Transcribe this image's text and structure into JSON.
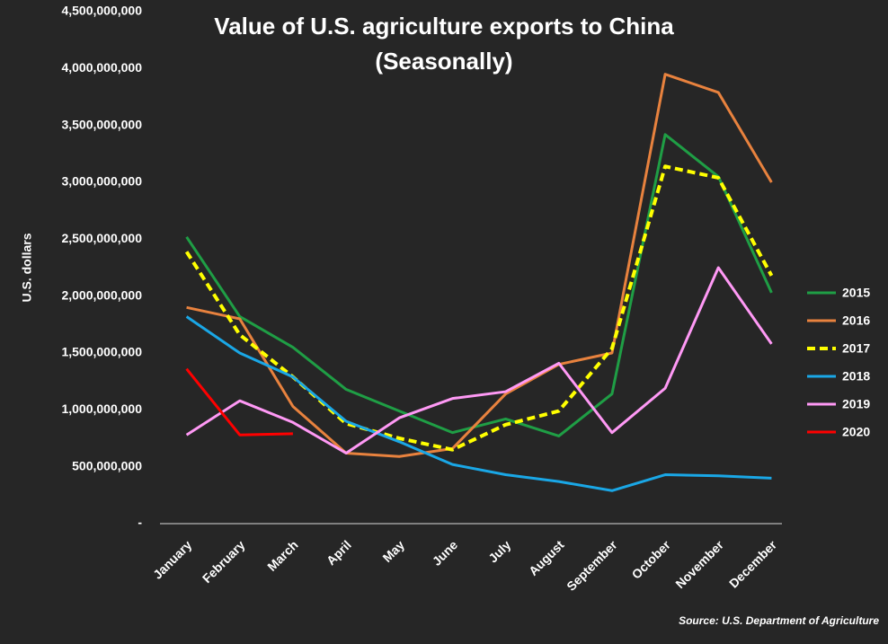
{
  "chart_data": {
    "type": "line",
    "title": "Value of U.S. agriculture exports to China",
    "subtitle": "(Seasonally)",
    "y_label": "U.S. dollars",
    "source": "Source: U.S. Department of Agriculture",
    "categories": [
      "January",
      "February",
      "March",
      "April",
      "May",
      "June",
      "July",
      "August",
      "September",
      "October",
      "November",
      "December"
    ],
    "ylim": [
      0,
      4500000000
    ],
    "yticks": [
      {
        "value": 0,
        "label": "-"
      },
      {
        "value": 500000000,
        "label": "500,000,000"
      },
      {
        "value": 1000000000,
        "label": "1,000,000,000"
      },
      {
        "value": 1500000000,
        "label": "1,500,000,000"
      },
      {
        "value": 2000000000,
        "label": "2,000,000,000"
      },
      {
        "value": 2500000000,
        "label": "2,500,000,000"
      },
      {
        "value": 3000000000,
        "label": "3,000,000,000"
      },
      {
        "value": 3500000000,
        "label": "3,500,000,000"
      },
      {
        "value": 4000000000,
        "label": "4,000,000,000"
      },
      {
        "value": 4500000000,
        "label": "4,500,000,000"
      }
    ],
    "grid": false,
    "legend": "right",
    "series": [
      {
        "name": "2015",
        "color": "#1f9e45",
        "dashed": false,
        "values": [
          2520000000,
          1820000000,
          1550000000,
          1180000000,
          990000000,
          800000000,
          920000000,
          770000000,
          1140000000,
          3420000000,
          3050000000,
          2030000000
        ]
      },
      {
        "name": "2016",
        "color": "#e8823e",
        "dashed": false,
        "values": [
          1900000000,
          1800000000,
          1030000000,
          620000000,
          590000000,
          660000000,
          1140000000,
          1400000000,
          1500000000,
          3950000000,
          3790000000,
          3000000000
        ]
      },
      {
        "name": "2017",
        "color": "#ffff00",
        "dashed": true,
        "values": [
          2390000000,
          1660000000,
          1290000000,
          880000000,
          750000000,
          650000000,
          870000000,
          990000000,
          1540000000,
          3140000000,
          3040000000,
          2180000000
        ]
      },
      {
        "name": "2018",
        "color": "#1aa7e6",
        "dashed": false,
        "values": [
          1820000000,
          1500000000,
          1290000000,
          900000000,
          720000000,
          520000000,
          430000000,
          370000000,
          290000000,
          430000000,
          420000000,
          400000000
        ]
      },
      {
        "name": "2019",
        "color": "#ff99f5",
        "dashed": false,
        "values": [
          780000000,
          1080000000,
          890000000,
          620000000,
          930000000,
          1100000000,
          1160000000,
          1410000000,
          800000000,
          1190000000,
          2250000000,
          1580000000
        ]
      },
      {
        "name": "2020",
        "color": "#ff0000",
        "dashed": false,
        "values": [
          1360000000,
          780000000,
          790000000,
          null,
          null,
          null,
          null,
          null,
          null,
          null,
          null,
          null
        ]
      }
    ]
  }
}
